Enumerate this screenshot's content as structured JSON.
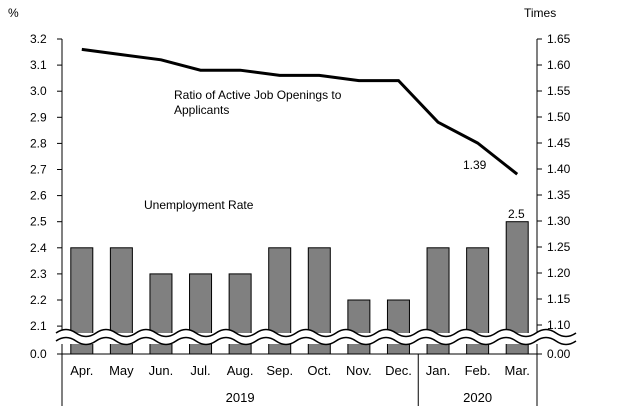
{
  "chart_data": {
    "type": "bar+line",
    "categories": [
      "Apr.",
      "May",
      "Jun.",
      "Jul.",
      "Aug.",
      "Sep.",
      "Oct.",
      "Nov.",
      "Dec.",
      "Jan.",
      "Feb.",
      "Mar."
    ],
    "year_groups": [
      {
        "label": "2019",
        "from": 0,
        "to": 8
      },
      {
        "label": "2020",
        "from": 9,
        "to": 11
      }
    ],
    "left_axis": {
      "unit": "%",
      "break_from": 0.0,
      "break_to": 2.05,
      "ticks": [
        "0.0",
        "2.1",
        "2.2",
        "2.3",
        "2.4",
        "2.5",
        "2.6",
        "2.7",
        "2.8",
        "2.9",
        "3.0",
        "3.1",
        "3.2"
      ]
    },
    "right_axis": {
      "unit": "Times",
      "break_from": 0.0,
      "break_to": 1.075,
      "ticks": [
        "0.00",
        "1.10",
        "1.15",
        "1.20",
        "1.25",
        "1.30",
        "1.35",
        "1.40",
        "1.45",
        "1.50",
        "1.55",
        "1.60",
        "1.65"
      ]
    },
    "series": [
      {
        "name": "Unemployment Rate",
        "kind": "bar",
        "axis": "left",
        "color": "#808080",
        "values": [
          2.4,
          2.4,
          2.3,
          2.3,
          2.3,
          2.4,
          2.4,
          2.2,
          2.2,
          2.4,
          2.4,
          2.5
        ]
      },
      {
        "name": "Ratio of Active Job Openings to Applicants",
        "kind": "line",
        "axis": "right",
        "color": "#000000",
        "values": [
          1.63,
          1.62,
          1.61,
          1.59,
          1.59,
          1.58,
          1.58,
          1.57,
          1.57,
          1.49,
          1.45,
          1.39
        ]
      }
    ],
    "annotations": {
      "line_label_1": "Ratio of Active Job Openings to",
      "line_label_2": "Applicants",
      "bar_label": "Unemployment  Rate",
      "last_line_value": "1.39",
      "last_bar_value": "2.5"
    }
  }
}
